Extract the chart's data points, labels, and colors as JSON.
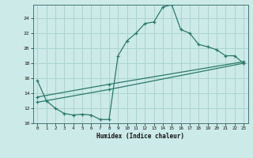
{
  "xlabel": "Humidex (Indice chaleur)",
  "bg_color": "#cceae8",
  "grid_color": "#aad4d2",
  "line_color": "#2a7a6a",
  "xlim": [
    -0.5,
    23.5
  ],
  "ylim": [
    10,
    25.8
  ],
  "yticks": [
    10,
    12,
    14,
    16,
    18,
    20,
    22,
    24
  ],
  "xticks": [
    0,
    1,
    2,
    3,
    4,
    5,
    6,
    7,
    8,
    9,
    10,
    11,
    12,
    13,
    14,
    15,
    16,
    17,
    18,
    19,
    20,
    21,
    22,
    23
  ],
  "line1_x": [
    0,
    1,
    2,
    3,
    4,
    5,
    6,
    7,
    8,
    9,
    10,
    11,
    12,
    13,
    14,
    15,
    16,
    17,
    18,
    19,
    20,
    21,
    22,
    23
  ],
  "line1_y": [
    15.7,
    13.0,
    12.0,
    11.3,
    11.1,
    11.2,
    11.1,
    10.5,
    10.5,
    19.0,
    21.0,
    22.0,
    23.3,
    23.5,
    25.5,
    25.8,
    22.5,
    22.0,
    20.5,
    20.2,
    19.8,
    19.0,
    19.0,
    18.0
  ],
  "line2_x": [
    0,
    8,
    23
  ],
  "line2_y": [
    12.8,
    14.5,
    18.0
  ],
  "line3_x": [
    0,
    8,
    23
  ],
  "line3_y": [
    13.5,
    15.2,
    18.2
  ],
  "marker_size": 2.5
}
